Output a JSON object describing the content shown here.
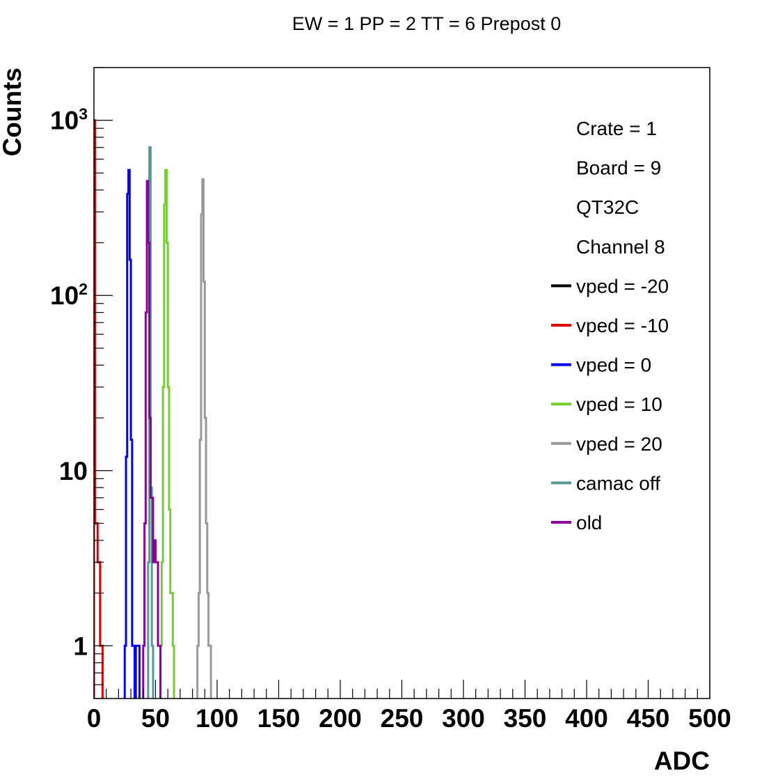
{
  "chart_data": {
    "type": "line",
    "title": "EW = 1 PP = 2 TT = 6 Prepost 0",
    "xlabel": "ADC",
    "ylabel": "Counts",
    "xlim": [
      0,
      500
    ],
    "ylim": [
      0.5,
      2000
    ],
    "y_scale": "log",
    "grid": false,
    "legend_position": "top-right",
    "x_ticks": [
      "0",
      "50",
      "100",
      "150",
      "200",
      "250",
      "300",
      "350",
      "400",
      "450",
      "500"
    ],
    "y_ticks": [
      {
        "value": 1,
        "base": "1",
        "exp": ""
      },
      {
        "value": 10,
        "base": "10",
        "exp": ""
      },
      {
        "value": 100,
        "base": "10",
        "exp": "2"
      },
      {
        "value": 1000,
        "base": "10",
        "exp": "3"
      }
    ],
    "info_lines": [
      "Crate = 1",
      "Board = 9",
      "QT32C",
      "Channel 8"
    ],
    "series": [
      {
        "name": "vped = -20",
        "color": "#000000",
        "bins": []
      },
      {
        "name": "vped = -10",
        "color": "#dd0000",
        "bins": [
          [
            0,
            1000
          ],
          [
            1,
            5
          ],
          [
            2,
            5
          ],
          [
            3,
            3
          ],
          [
            4,
            3
          ],
          [
            5,
            1
          ],
          [
            6,
            1
          ]
        ]
      },
      {
        "name": "vped = 0",
        "color": "#0000ee",
        "bins": [
          [
            25,
            1
          ],
          [
            26,
            12
          ],
          [
            27,
            380
          ],
          [
            28,
            520
          ],
          [
            29,
            160
          ],
          [
            30,
            15
          ],
          [
            31,
            1
          ],
          [
            32,
            1
          ],
          [
            34,
            1
          ],
          [
            35,
            1
          ],
          [
            36,
            1
          ]
        ]
      },
      {
        "name": "vped = 10",
        "color": "#77cc33",
        "bins": [
          [
            54,
            1
          ],
          [
            55,
            3
          ],
          [
            56,
            30
          ],
          [
            57,
            330
          ],
          [
            58,
            520
          ],
          [
            59,
            200
          ],
          [
            60,
            30
          ],
          [
            61,
            6
          ],
          [
            62,
            2
          ],
          [
            63,
            2
          ],
          [
            64,
            1
          ]
        ]
      },
      {
        "name": "vped = 20",
        "color": "#999999",
        "bins": [
          [
            84,
            1
          ],
          [
            85,
            2
          ],
          [
            86,
            15
          ],
          [
            87,
            290
          ],
          [
            88,
            460
          ],
          [
            89,
            120
          ],
          [
            90,
            20
          ],
          [
            91,
            5
          ],
          [
            92,
            2
          ],
          [
            93,
            1
          ],
          [
            94,
            1
          ]
        ]
      },
      {
        "name": "camac off",
        "color": "#559999",
        "bins": [
          [
            44,
            3
          ],
          [
            45,
            700
          ],
          [
            46,
            8
          ],
          [
            47,
            1
          ]
        ]
      },
      {
        "name": "old",
        "color": "#880099",
        "bins": [
          [
            40,
            1
          ],
          [
            41,
            5
          ],
          [
            42,
            80
          ],
          [
            43,
            450
          ],
          [
            44,
            200
          ],
          [
            45,
            20
          ],
          [
            46,
            7
          ],
          [
            47,
            7
          ],
          [
            48,
            3
          ],
          [
            49,
            4
          ],
          [
            50,
            3
          ],
          [
            51,
            3
          ],
          [
            52,
            1
          ],
          [
            53,
            1
          ]
        ]
      }
    ]
  }
}
